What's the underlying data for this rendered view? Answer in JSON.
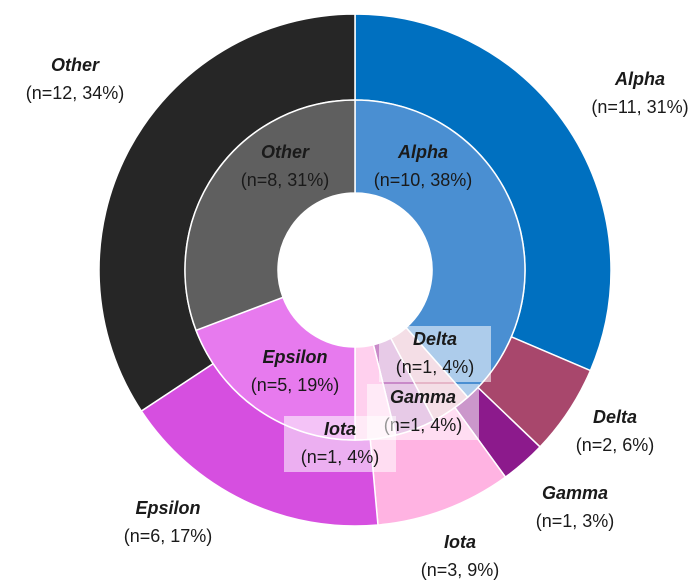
{
  "chart_data": [
    {
      "type": "donut",
      "categories": [
        "Alpha",
        "Delta",
        "Gamma",
        "Iota",
        "Epsilon",
        "Other"
      ],
      "values": [
        11,
        2,
        1,
        3,
        6,
        12
      ],
      "value_labels": [
        "(n=11, 31%)",
        "(n=2, 6%)",
        "(n=1, 3%)",
        "(n=3, 9%)",
        "(n=6, 17%)",
        "(n=12, 34%)"
      ],
      "colors": [
        "#0070c0",
        "#a8476c",
        "#8c1a8c",
        "#ffb3e2",
        "#d64fe0",
        "#262626"
      ]
    },
    {
      "type": "donut",
      "categories": [
        "Alpha",
        "Delta",
        "Gamma",
        "Iota",
        "Epsilon",
        "Other"
      ],
      "values": [
        10,
        1,
        1,
        1,
        5,
        8
      ],
      "value_labels": [
        "(n=10, 38%)",
        "(n=1, 4%)",
        "(n=1, 4%)",
        "(n=1, 4%)",
        "(n=5, 19%)",
        "(n=8, 31%)"
      ],
      "colors": [
        "#4a8fd2",
        "#e6b6c8",
        "#c98ac9",
        "#ffd0ee",
        "#e77aee",
        "#5f5f5f"
      ]
    }
  ]
}
